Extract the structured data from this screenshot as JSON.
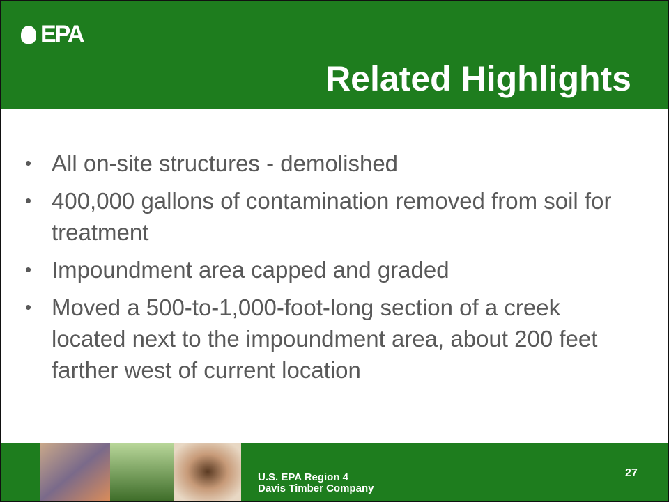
{
  "header": {
    "logo": "EPA",
    "title": "Related Highlights"
  },
  "bullets": [
    "All on-site structures - demolished",
    "400,000 gallons of contamination removed from soil for treatment",
    "Impoundment area capped and graded",
    "Moved a 500-to-1,000-foot-long section of a creek located next to the impoundment area, about 200 feet farther west of current location"
  ],
  "footer": {
    "line1": "U.S. EPA Region 4",
    "line2": "Davis Timber Company",
    "page": "27"
  }
}
